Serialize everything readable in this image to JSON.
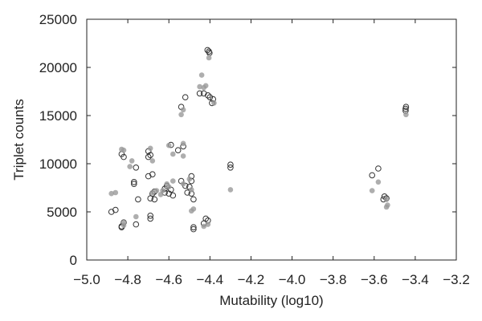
{
  "chart_data": {
    "type": "scatter",
    "title": "",
    "xlabel": "Mutability (log10)",
    "ylabel": "Triplet counts",
    "xlim": [
      -5.0,
      -3.2
    ],
    "ylim": [
      0,
      25000
    ],
    "xticks": [
      -5.0,
      -4.8,
      -4.6,
      -4.4,
      -4.2,
      -4.0,
      -3.8,
      -3.6,
      -3.4,
      -3.2
    ],
    "xtick_labels": [
      "−5.0",
      "−4.8",
      "−4.6",
      "−4.4",
      "−4.2",
      "−4.0",
      "−3.8",
      "−3.6",
      "−3.4",
      "−3.2"
    ],
    "yticks": [
      0,
      5000,
      10000,
      15000,
      20000,
      25000
    ],
    "ytick_labels": [
      "0",
      "5000",
      "10000",
      "15000",
      "20000",
      "25000"
    ],
    "grid": false,
    "legend": "none",
    "series": [
      {
        "style": "open",
        "color": "#333333",
        "points": [
          [
            -4.412,
            21800
          ],
          [
            -4.405,
            21650
          ],
          [
            -4.402,
            21500
          ],
          [
            -4.43,
            17300
          ],
          [
            -4.41,
            17100
          ],
          [
            -4.4,
            16900
          ],
          [
            -4.385,
            16700
          ],
          [
            -4.39,
            16300
          ],
          [
            -4.45,
            17300
          ],
          [
            -4.52,
            16900
          ],
          [
            -4.54,
            15900
          ],
          [
            -3.445,
            15900
          ],
          [
            -3.447,
            15700
          ],
          [
            -3.447,
            15500
          ],
          [
            -4.59,
            11950
          ],
          [
            -4.53,
            11800
          ],
          [
            -4.555,
            11400
          ],
          [
            -4.7,
            11300
          ],
          [
            -4.69,
            10900
          ],
          [
            -4.7,
            10700
          ],
          [
            -4.83,
            11000
          ],
          [
            -4.82,
            10700
          ],
          [
            -4.76,
            9600
          ],
          [
            -4.3,
            9900
          ],
          [
            -4.3,
            9600
          ],
          [
            -4.49,
            8700
          ],
          [
            -4.49,
            8200
          ],
          [
            -4.68,
            8900
          ],
          [
            -4.7,
            8700
          ],
          [
            -4.77,
            8100
          ],
          [
            -4.77,
            7900
          ],
          [
            -4.61,
            7700
          ],
          [
            -4.62,
            7400
          ],
          [
            -4.59,
            7300
          ],
          [
            -4.62,
            7000
          ],
          [
            -4.6,
            6900
          ],
          [
            -4.58,
            6700
          ],
          [
            -4.67,
            7100
          ],
          [
            -4.68,
            6900
          ],
          [
            -4.69,
            6400
          ],
          [
            -4.67,
            6300
          ],
          [
            -4.75,
            6300
          ],
          [
            -4.54,
            8200
          ],
          [
            -4.52,
            7700
          ],
          [
            -4.5,
            7600
          ],
          [
            -4.51,
            7000
          ],
          [
            -4.49,
            6900
          ],
          [
            -4.48,
            6300
          ],
          [
            -3.58,
            9500
          ],
          [
            -3.61,
            8800
          ],
          [
            -3.55,
            6600
          ],
          [
            -3.54,
            6400
          ],
          [
            -3.555,
            6300
          ],
          [
            -4.86,
            5200
          ],
          [
            -4.88,
            5000
          ],
          [
            -4.82,
            3900
          ],
          [
            -4.83,
            3500
          ],
          [
            -4.83,
            3400
          ],
          [
            -4.69,
            4600
          ],
          [
            -4.69,
            4300
          ],
          [
            -4.76,
            3700
          ],
          [
            -4.48,
            3400
          ],
          [
            -4.48,
            3200
          ],
          [
            -4.42,
            4300
          ],
          [
            -4.41,
            4100
          ],
          [
            -4.43,
            3800
          ]
        ]
      },
      {
        "style": "filled",
        "color": "#9a9a9a",
        "points": [
          [
            -4.405,
            21000
          ],
          [
            -4.44,
            19200
          ],
          [
            -4.45,
            18000
          ],
          [
            -4.42,
            18100
          ],
          [
            -4.43,
            17900
          ],
          [
            -4.53,
            15600
          ],
          [
            -4.54,
            15100
          ],
          [
            -4.38,
            16300
          ],
          [
            -3.445,
            15100
          ],
          [
            -4.83,
            11500
          ],
          [
            -4.82,
            11400
          ],
          [
            -4.78,
            10300
          ],
          [
            -4.69,
            11600
          ],
          [
            -4.68,
            10300
          ],
          [
            -4.6,
            11900
          ],
          [
            -4.53,
            12100
          ],
          [
            -4.53,
            10800
          ],
          [
            -4.58,
            11000
          ],
          [
            -4.79,
            9700
          ],
          [
            -4.3,
            7300
          ],
          [
            -4.58,
            8200
          ],
          [
            -4.61,
            7900
          ],
          [
            -4.6,
            7600
          ],
          [
            -4.63,
            7200
          ],
          [
            -4.64,
            6800
          ],
          [
            -4.66,
            7200
          ],
          [
            -4.68,
            7000
          ],
          [
            -4.5,
            8400
          ],
          [
            -4.53,
            7900
          ],
          [
            -4.49,
            7300
          ],
          [
            -3.58,
            8100
          ],
          [
            -3.61,
            7200
          ],
          [
            -3.54,
            6300
          ],
          [
            -3.535,
            5700
          ],
          [
            -3.54,
            5500
          ],
          [
            -4.88,
            6900
          ],
          [
            -4.86,
            7000
          ],
          [
            -4.82,
            3900
          ],
          [
            -4.82,
            3600
          ],
          [
            -4.76,
            4500
          ],
          [
            -4.49,
            5100
          ],
          [
            -4.48,
            5300
          ],
          [
            -4.43,
            3500
          ],
          [
            -4.41,
            3700
          ]
        ]
      }
    ]
  }
}
